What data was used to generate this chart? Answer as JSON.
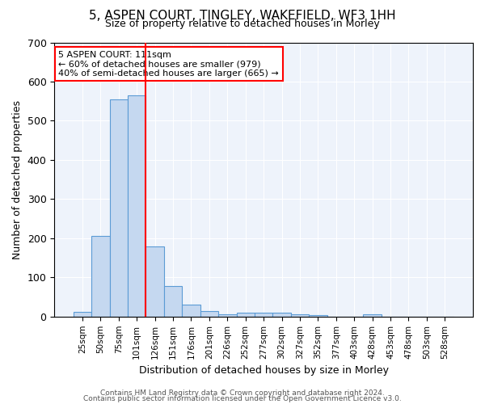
{
  "title": "5, ASPEN COURT, TINGLEY, WAKEFIELD, WF3 1HH",
  "subtitle": "Size of property relative to detached houses in Morley",
  "xlabel": "Distribution of detached houses by size in Morley",
  "ylabel": "Number of detached properties",
  "categories": [
    "25sqm",
    "50sqm",
    "75sqm",
    "101sqm",
    "126sqm",
    "151sqm",
    "176sqm",
    "201sqm",
    "226sqm",
    "252sqm",
    "277sqm",
    "302sqm",
    "327sqm",
    "352sqm",
    "377sqm",
    "403sqm",
    "428sqm",
    "453sqm",
    "478sqm",
    "503sqm",
    "528sqm"
  ],
  "values": [
    12,
    205,
    555,
    565,
    180,
    78,
    30,
    14,
    5,
    10,
    10,
    10,
    5,
    4,
    0,
    0,
    5,
    0,
    0,
    0,
    0
  ],
  "bar_color": "#c5d8f0",
  "bar_edge_color": "#5b9bd5",
  "red_line_x": 3.5,
  "annotation_text_line1": "5 ASPEN COURT: 111sqm",
  "annotation_text_line2": "← 60% of detached houses are smaller (979)",
  "annotation_text_line3": "40% of semi-detached houses are larger (665) →",
  "annotation_box_color": "white",
  "annotation_box_edge_color": "red",
  "ylim": [
    0,
    700
  ],
  "yticks": [
    0,
    100,
    200,
    300,
    400,
    500,
    600,
    700
  ],
  "background_color": "#eef3fb",
  "grid_color": "white",
  "footer1": "Contains HM Land Registry data © Crown copyright and database right 2024.",
  "footer2": "Contains public sector information licensed under the Open Government Licence v3.0."
}
